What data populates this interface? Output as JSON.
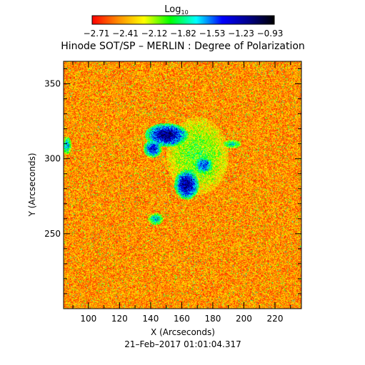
{
  "chart_data": {
    "type": "heatmap",
    "title": "Hinode SOT/SP – MERLIN : Degree of Polarization",
    "xlabel": "X (Arcseconds)",
    "ylabel": "Y (Arcseconds)",
    "xlim": [
      84,
      237
    ],
    "ylim": [
      200,
      365
    ],
    "xticks": [
      100,
      120,
      140,
      160,
      180,
      200,
      220
    ],
    "yticks": [
      250,
      300,
      350
    ],
    "timestamp": "21–Feb–2017 01:01:04.317",
    "colorbar": {
      "label_base": "Log",
      "label_sub": "10",
      "range": [
        -2.71,
        -0.93
      ],
      "tick_labels": [
        "−2.71",
        "−2.41",
        "−2.12",
        "−1.82",
        "−1.53",
        "−1.23",
        "−0.93"
      ],
      "colormap": [
        "#ff0000",
        "#ff8c00",
        "#ffff00",
        "#00ff00",
        "#00ffff",
        "#0000ff",
        "#00008b",
        "#000000"
      ]
    },
    "field": {
      "background_level": 0.15,
      "noise_level": 0.25,
      "patches": [
        {
          "x": 150,
          "y": 316,
          "rx": 14,
          "ry": 8,
          "level": 0.85
        },
        {
          "x": 141,
          "y": 307,
          "rx": 6,
          "ry": 6,
          "level": 0.75
        },
        {
          "x": 163,
          "y": 283,
          "rx": 8,
          "ry": 10,
          "level": 0.85
        },
        {
          "x": 174,
          "y": 296,
          "rx": 6,
          "ry": 6,
          "level": 0.7
        },
        {
          "x": 86,
          "y": 309,
          "rx": 3,
          "ry": 6,
          "level": 0.6
        },
        {
          "x": 143,
          "y": 260,
          "rx": 5,
          "ry": 4,
          "level": 0.6
        },
        {
          "x": 192,
          "y": 310,
          "rx": 6,
          "ry": 3,
          "level": 0.55
        },
        {
          "x": 170,
          "y": 302,
          "rx": 20,
          "ry": 26,
          "level": 0.4
        }
      ]
    }
  }
}
